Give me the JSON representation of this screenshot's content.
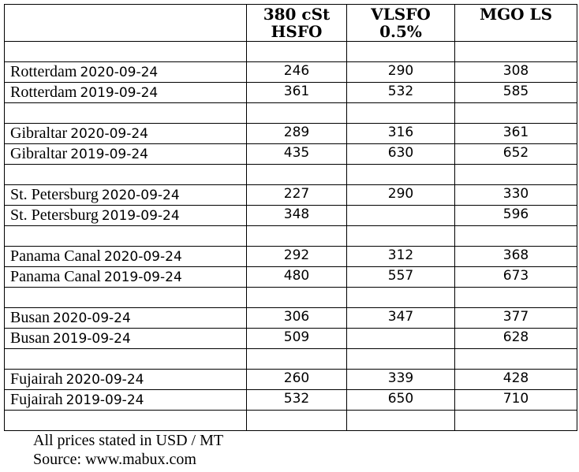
{
  "headers": {
    "location": "",
    "hsfo": "380 cSt HSFO",
    "vlsfo": "VLSFO 0.5%",
    "mgo": "MGO LS"
  },
  "rows": [
    {
      "blank": true
    },
    {
      "city": "Rotterdam",
      "date": "2020-09-24",
      "hsfo": "246",
      "vlsfo": "290",
      "mgo": "308"
    },
    {
      "city": "Rotterdam",
      "date": "2019-09-24",
      "hsfo": "361",
      "vlsfo": "532",
      "mgo": "585"
    },
    {
      "blank": true
    },
    {
      "city": "Gibraltar",
      "date": "2020-09-24",
      "hsfo": "289",
      "vlsfo": "316",
      "mgo": "361"
    },
    {
      "city": "Gibraltar",
      "date": "2019-09-24",
      "hsfo": "435",
      "vlsfo": "630",
      "mgo": "652"
    },
    {
      "blank": true
    },
    {
      "city": "St. Petersburg",
      "date": "2020-09-24",
      "hsfo": "227",
      "vlsfo": "290",
      "mgo": "330"
    },
    {
      "city": "St. Petersburg",
      "date": "2019-09-24",
      "hsfo": "348",
      "vlsfo": "",
      "mgo": "596"
    },
    {
      "blank": true
    },
    {
      "city": "Panama Canal",
      "date": "2020-09-24",
      "hsfo": "292",
      "vlsfo": "312",
      "mgo": "368"
    },
    {
      "city": "Panama Canal",
      "date": "2019-09-24",
      "hsfo": "480",
      "vlsfo": "557",
      "mgo": "673"
    },
    {
      "blank": true
    },
    {
      "city": "Busan",
      "date": "2020-09-24",
      "hsfo": "306",
      "vlsfo": "347",
      "mgo": "377"
    },
    {
      "city": "Busan",
      "date": "2019-09-24",
      "hsfo": "509",
      "vlsfo": "",
      "mgo": "628"
    },
    {
      "blank": true
    },
    {
      "city": "Fujairah",
      "date": "2020-09-24",
      "hsfo": "260",
      "vlsfo": "339",
      "mgo": "428"
    },
    {
      "city": "Fujairah",
      "date": "2019-09-24",
      "hsfo": "532",
      "vlsfo": "650",
      "mgo": "710"
    },
    {
      "blank": true
    }
  ],
  "notes": {
    "line1": "All prices stated in USD / MT",
    "line2": "Source: www.mabux.com"
  }
}
